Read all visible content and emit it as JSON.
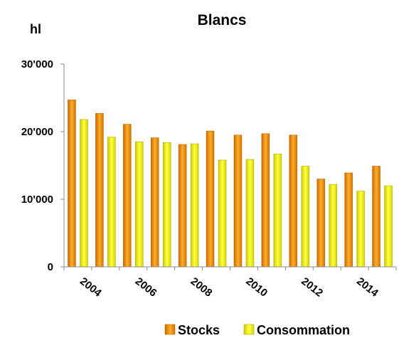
{
  "chart_data": {
    "type": "bar",
    "title": "Blancs",
    "ylabel": "hl",
    "xlabel": "",
    "categories": [
      "2004",
      "2005",
      "2006",
      "2007",
      "2008",
      "2009",
      "2010",
      "2011",
      "2012",
      "2013",
      "2014",
      "2015"
    ],
    "x_tick_labels": [
      "2004",
      "2006",
      "2008",
      "2010",
      "2012",
      "2014"
    ],
    "y_tick_labels": [
      "0",
      "10'000",
      "20'000",
      "30'000"
    ],
    "ylim": [
      0,
      30000
    ],
    "grid": false,
    "legend_position": "bottom",
    "series": [
      {
        "name": "Stocks",
        "color": "#f29a10",
        "values": [
          24700,
          22700,
          21100,
          19100,
          18100,
          20100,
          19500,
          19700,
          19500,
          13000,
          13900,
          14900
        ]
      },
      {
        "name": "Consommation",
        "color": "#f3f300",
        "values": [
          21800,
          19200,
          18500,
          18400,
          18200,
          15800,
          15900,
          16700,
          14900,
          12200,
          11200,
          12000
        ]
      }
    ]
  }
}
